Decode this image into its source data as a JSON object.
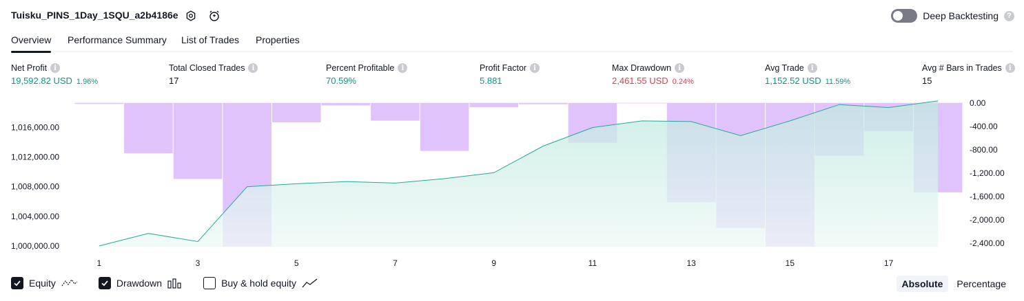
{
  "header": {
    "strategy_title": "Tuisku_PINS_1Day_1SQU_a2b4186e",
    "deep_backtesting_label": "Deep Backtesting",
    "deep_backtesting_enabled": false
  },
  "tabs": [
    {
      "label": "Overview",
      "active": true
    },
    {
      "label": "Performance Summary",
      "active": false
    },
    {
      "label": "List of Trades",
      "active": false
    },
    {
      "label": "Properties",
      "active": false
    }
  ],
  "metrics": [
    {
      "label": "Net Profit",
      "value": "19,592.82 USD",
      "pct": "1.96%",
      "tone": "pos"
    },
    {
      "label": "Total Closed Trades",
      "value": "17",
      "pct": "",
      "tone": "neu"
    },
    {
      "label": "Percent Profitable",
      "value": "70.59%",
      "pct": "",
      "tone": "pos"
    },
    {
      "label": "Profit Factor",
      "value": "5.881",
      "pct": "",
      "tone": "pos"
    },
    {
      "label": "Max Drawdown",
      "value": "2,461.55 USD",
      "pct": "0.24%",
      "tone": "neg"
    },
    {
      "label": "Avg Trade",
      "value": "1,152.52 USD",
      "pct": "11.59%",
      "tone": "pos"
    },
    {
      "label": "Avg # Bars in Trades",
      "value": "15",
      "pct": "",
      "tone": "neu"
    }
  ],
  "legend": {
    "equity_label": "Equity",
    "equity_checked": true,
    "drawdown_label": "Drawdown",
    "drawdown_checked": true,
    "buyhold_label": "Buy & hold equity",
    "buyhold_checked": false
  },
  "mode": {
    "absolute_label": "Absolute",
    "percentage_label": "Percentage",
    "selected": "Absolute"
  },
  "colors": {
    "equity_line": "#22ab94",
    "equity_fill_top": "#bfe8df",
    "equity_fill_bottom": "#eef9f6",
    "drawdown_bar": "#e1c3fc",
    "drawdown_over_equity": "#b3b8e8",
    "positive": "#089981",
    "negative": "#f23645"
  },
  "chart_data": {
    "type": "line",
    "x": [
      1,
      2,
      3,
      4,
      5,
      6,
      7,
      8,
      9,
      10,
      11,
      12,
      13,
      14,
      15,
      16,
      17,
      18
    ],
    "x_ticks": [
      "1",
      "3",
      "5",
      "7",
      "9",
      "11",
      "13",
      "15",
      "17"
    ],
    "left_axis": {
      "ticks": [
        "1,000,000.00",
        "1,004,000.00",
        "1,008,000.00",
        "1,012,000.00",
        "1,016,000.00"
      ],
      "ylim": [
        999900,
        1019300
      ]
    },
    "right_axis": {
      "ticks": [
        "0.00",
        "-400.00",
        "-800.00",
        "-1,200.00",
        "-1,600.00",
        "-2,000.00",
        "-2,400.00"
      ],
      "ylim": [
        -2461.55,
        0
      ]
    },
    "series": [
      {
        "name": "Equity",
        "axis": "left",
        "values": [
          1000000,
          1001700,
          1000600,
          1008000,
          1008400,
          1008700,
          1008500,
          1009100,
          1009900,
          1013500,
          1016000,
          1016900,
          1016800,
          1014900,
          1016900,
          1019100,
          1018700,
          1019592.82
        ]
      },
      {
        "name": "Drawdown",
        "axis": "right",
        "type": "bar",
        "values": [
          -15,
          -860,
          -1300,
          -2461.55,
          -330,
          -40,
          -300,
          -820,
          -70,
          -20,
          -680,
          0,
          -1700,
          -2140,
          -2461.55,
          -900,
          -480,
          -1530
        ]
      }
    ]
  }
}
